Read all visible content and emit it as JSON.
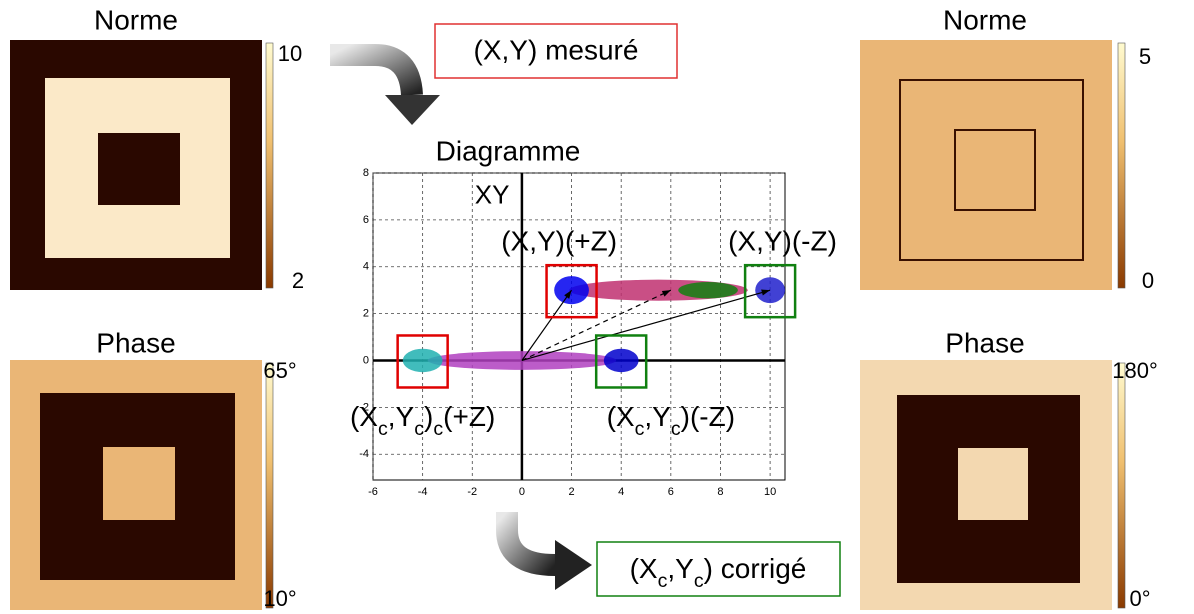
{
  "panels": [
    {
      "title": "Norme",
      "cb_max": "10",
      "cb_min": "2"
    },
    {
      "title": "Phase",
      "cb_max": "65°",
      "cb_min": "10°"
    },
    {
      "title": "Norme",
      "cb_max": "5",
      "cb_min": "0"
    },
    {
      "title": "Phase",
      "cb_max": "180°",
      "cb_min": "0°"
    }
  ],
  "measured_label": "(X,Y) mesuré",
  "corrected_label": [
    {
      "text": "(X"
    },
    {
      "text": "c",
      "sub": true
    },
    {
      "text": ",Y"
    },
    {
      "text": "c",
      "sub": true
    },
    {
      "text": ") corrigé"
    }
  ],
  "diagram": {
    "title": "Diagramme",
    "axis_label": "XY",
    "xlim": [
      -6,
      10.6
    ],
    "ylim": [
      -5.1,
      8
    ],
    "xticks": [
      -6,
      -4,
      -2,
      0,
      2,
      4,
      6,
      8,
      10
    ],
    "yticks": [
      -4,
      -2,
      0,
      2,
      4,
      6,
      8
    ],
    "grid": true,
    "clusters": [
      {
        "x": 5.5,
        "y": 3,
        "rx": 3.6,
        "ry": 0.45,
        "color": "#c03070"
      },
      {
        "x": 7.5,
        "y": 3,
        "rx": 1.2,
        "ry": 0.35,
        "color": "#108010"
      },
      {
        "x": 2,
        "y": 3,
        "rx": 0.7,
        "ry": 0.6,
        "color": "#0000ee"
      },
      {
        "x": 10,
        "y": 3,
        "rx": 0.6,
        "ry": 0.55,
        "color": "#2020cc"
      },
      {
        "x": 0,
        "y": 0,
        "rx": 3.8,
        "ry": 0.4,
        "color": "#b040c0"
      },
      {
        "x": -4,
        "y": 0,
        "rx": 0.8,
        "ry": 0.5,
        "color": "#20b0b0"
      },
      {
        "x": 4,
        "y": 0,
        "rx": 0.7,
        "ry": 0.5,
        "color": "#0000cc"
      }
    ],
    "vectors": [
      {
        "x": 2,
        "y": 3,
        "dashed": false
      },
      {
        "x": 6,
        "y": 3,
        "dashed": true
      },
      {
        "x": 10,
        "y": 3,
        "dashed": false
      }
    ],
    "boxes": [
      {
        "x": 2,
        "y": 3,
        "color": "#e00000"
      },
      {
        "x": 10,
        "y": 3,
        "color": "#108010"
      },
      {
        "x": -4,
        "y": 0,
        "color": "#e00000"
      },
      {
        "x": 4,
        "y": 0,
        "color": "#108010"
      }
    ],
    "labels": [
      {
        "x": 1.5,
        "y": 5,
        "parts": [
          {
            "text": "(X,Y)(+Z)"
          }
        ]
      },
      {
        "x": 10.5,
        "y": 5,
        "parts": [
          {
            "text": "(X,Y)(-Z)"
          }
        ]
      },
      {
        "x": -4,
        "y": -2.5,
        "parts": [
          {
            "text": "(X"
          },
          {
            "text": "c",
            "sub": true
          },
          {
            "text": ",Y"
          },
          {
            "text": "c",
            "sub": true
          },
          {
            "text": ")"
          },
          {
            "text": "c",
            "sub": true
          },
          {
            "text": "(+Z)"
          }
        ]
      },
      {
        "x": 6,
        "y": -2.5,
        "parts": [
          {
            "text": "(X"
          },
          {
            "text": "c",
            "sub": true
          },
          {
            "text": ",Y"
          },
          {
            "text": "c",
            "sub": true
          },
          {
            "text": ")(-Z)"
          }
        ]
      }
    ]
  }
}
